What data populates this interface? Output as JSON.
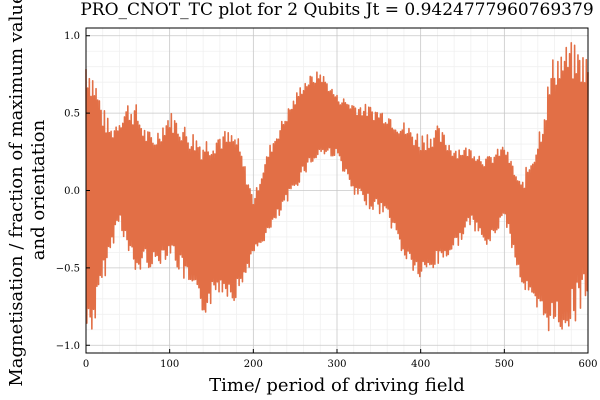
{
  "chart_data": {
    "type": "line",
    "title": "PRO_CNOT_TC plot for 2 Qubits Jt = 0.9424777960769379",
    "xlabel": "Time/ period of driving field",
    "ylabel_line1": "Magnetisation / fraction of maximum value",
    "ylabel_line2": "and orientation",
    "xlim": [
      0,
      600
    ],
    "ylim": [
      -1.05,
      1.05
    ],
    "xticks": [
      0,
      100,
      200,
      300,
      400,
      500,
      600
    ],
    "yticks": [
      -1.0,
      -0.5,
      0.0,
      0.5,
      1.0
    ],
    "xtick_labels": [
      "0",
      "100",
      "200",
      "300",
      "400",
      "500",
      "600"
    ],
    "ytick_labels": [
      "−1.0",
      "−0.5",
      "0.0",
      "0.5",
      "1.0"
    ],
    "grid": true,
    "legend": "none",
    "series_color": "#e26f46",
    "envelope": {
      "x": [
        0,
        10,
        20,
        30,
        40,
        50,
        60,
        70,
        80,
        100,
        120,
        140,
        160,
        180,
        200,
        220,
        240,
        260,
        280,
        300,
        320,
        340,
        360,
        380,
        400,
        420,
        440,
        460,
        480,
        500,
        520,
        540,
        560,
        580,
        600
      ],
      "upper": [
        0.92,
        0.78,
        0.55,
        0.42,
        0.48,
        0.58,
        0.56,
        0.42,
        0.36,
        0.52,
        0.42,
        0.35,
        0.4,
        0.38,
        -0.05,
        0.3,
        0.52,
        0.72,
        0.78,
        0.62,
        0.58,
        0.55,
        0.52,
        0.45,
        0.38,
        0.42,
        0.3,
        0.28,
        0.22,
        0.3,
        0.05,
        0.38,
        0.92,
        0.96,
        0.88
      ],
      "lower": [
        -0.98,
        -0.9,
        -0.62,
        -0.4,
        -0.2,
        -0.42,
        -0.58,
        -0.48,
        -0.52,
        -0.42,
        -0.62,
        -0.82,
        -0.66,
        -0.72,
        -0.42,
        -0.28,
        -0.1,
        0.1,
        0.22,
        0.22,
        -0.05,
        -0.12,
        -0.18,
        -0.45,
        -0.6,
        -0.5,
        -0.4,
        -0.22,
        -0.38,
        -0.18,
        -0.6,
        -0.85,
        -0.95,
        -0.9,
        -0.68
      ]
    }
  }
}
